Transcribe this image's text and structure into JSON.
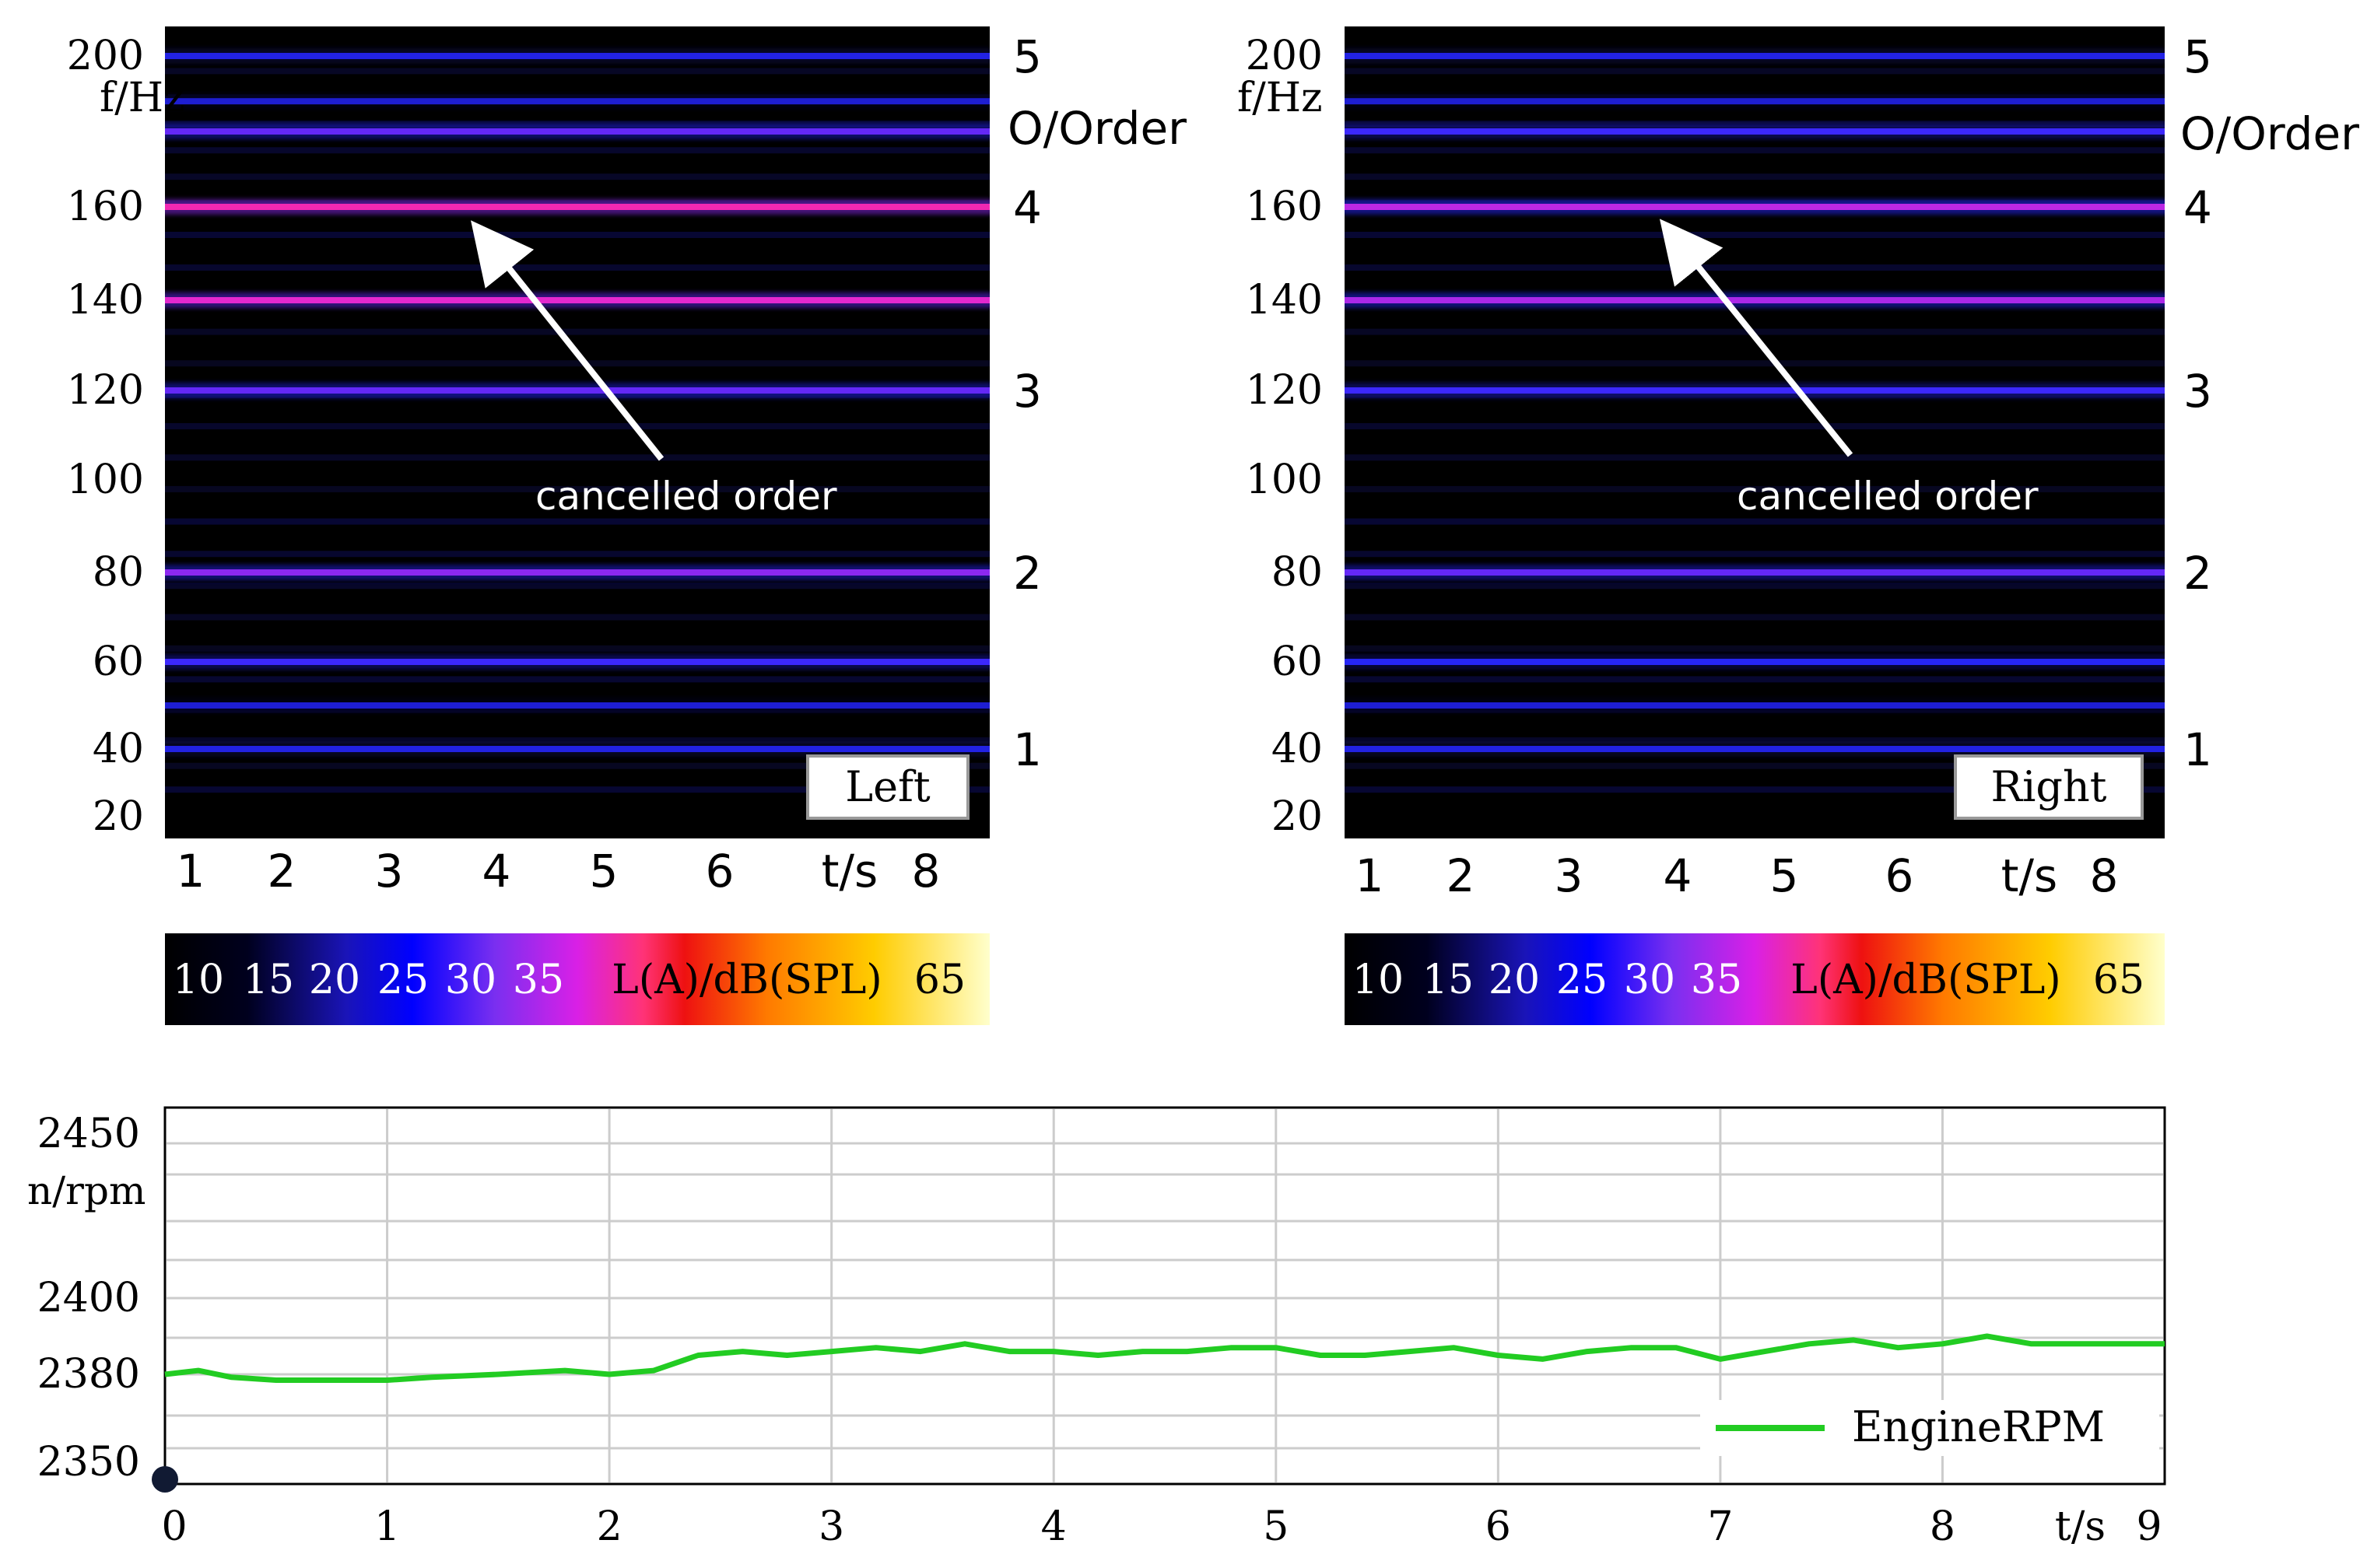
{
  "chart_data": [
    {
      "type": "heatmap",
      "panel": "Left",
      "legend_label": "Left",
      "y_axis_label": "f/Hz",
      "y_tick_labels": [
        "200",
        "160",
        "140",
        "120",
        "100",
        "80",
        "60",
        "40",
        "20"
      ],
      "y_ticks": [
        200,
        160,
        140,
        120,
        100,
        80,
        60,
        40,
        20
      ],
      "x_tick_labels": [
        "1",
        "2",
        "3",
        "4",
        "5",
        "6",
        "t/s",
        "8"
      ],
      "order_axis_label": "O/Order",
      "order_tick_labels": [
        "5",
        "4",
        "3",
        "2",
        "1"
      ],
      "annotation": "cancelled order",
      "harmonic_lines": [
        {
          "f": 200,
          "level": 22
        },
        {
          "f": 188,
          "level": 20
        },
        {
          "f": 180,
          "level": 28
        },
        {
          "f": 160,
          "level": 38
        },
        {
          "f": 140,
          "level": 36
        },
        {
          "f": 120,
          "level": 28
        },
        {
          "f": 80,
          "level": 30
        },
        {
          "f": 60,
          "level": 26
        },
        {
          "f": 50,
          "level": 20
        },
        {
          "f": 40,
          "level": 22
        }
      ]
    },
    {
      "type": "heatmap",
      "panel": "Right",
      "legend_label": "Right",
      "y_axis_label": "f/Hz",
      "y_tick_labels": [
        "200",
        "160",
        "140",
        "120",
        "100",
        "80",
        "60",
        "40",
        "20"
      ],
      "y_ticks": [
        200,
        160,
        140,
        120,
        100,
        80,
        60,
        40,
        20
      ],
      "x_tick_labels": [
        "1",
        "2",
        "3",
        "4",
        "5",
        "6",
        "t/s",
        "8"
      ],
      "order_axis_label": "O/Order",
      "order_tick_labels": [
        "5",
        "4",
        "3",
        "2",
        "1"
      ],
      "annotation": "cancelled order",
      "harmonic_lines": [
        {
          "f": 200,
          "level": 22
        },
        {
          "f": 188,
          "level": 20
        },
        {
          "f": 180,
          "level": 26
        },
        {
          "f": 160,
          "level": 33
        },
        {
          "f": 140,
          "level": 32
        },
        {
          "f": 120,
          "level": 26
        },
        {
          "f": 80,
          "level": 28
        },
        {
          "f": 60,
          "level": 24
        },
        {
          "f": 50,
          "level": 20
        },
        {
          "f": 40,
          "level": 22
        }
      ]
    },
    {
      "type": "line",
      "y_axis_label": "n/rpm",
      "y_tick_labels": [
        "2450",
        "2400",
        "2380",
        "2350"
      ],
      "x_tick_labels": [
        "0",
        "1",
        "2",
        "3",
        "4",
        "5",
        "6",
        "7",
        "8",
        "t/s",
        "9"
      ],
      "xlim": [
        0,
        9
      ],
      "series": [
        {
          "name": "EngineRPM",
          "color": "#22cc22",
          "x": [
            0,
            0.15,
            0.3,
            0.5,
            0.7,
            1.0,
            1.2,
            1.5,
            1.8,
            2.0,
            2.2,
            2.4,
            2.6,
            2.8,
            3.0,
            3.2,
            3.4,
            3.6,
            3.8,
            4.0,
            4.2,
            4.4,
            4.6,
            4.8,
            5.0,
            5.2,
            5.4,
            5.6,
            5.8,
            6.0,
            6.2,
            6.4,
            6.6,
            6.8,
            7.0,
            7.2,
            7.4,
            7.6,
            7.8,
            8.0,
            8.2,
            8.4,
            8.6,
            8.8,
            9.0
          ],
          "y": [
            2380,
            2381,
            2379,
            2378,
            2378,
            2378,
            2379,
            2380,
            2381,
            2380,
            2381,
            2385,
            2386,
            2385,
            2386,
            2387,
            2386,
            2388,
            2386,
            2386,
            2385,
            2386,
            2386,
            2387,
            2387,
            2385,
            2385,
            2386,
            2387,
            2385,
            2384,
            2386,
            2387,
            2387,
            2384,
            2386,
            2388,
            2389,
            2387,
            2388,
            2390,
            2388,
            2388,
            2388,
            2388
          ]
        }
      ],
      "colorbar": {
        "tick_labels": [
          "10",
          "15",
          "20",
          "25",
          "30",
          "35",
          "L(A)/dB(SPL)",
          "65"
        ]
      }
    }
  ]
}
